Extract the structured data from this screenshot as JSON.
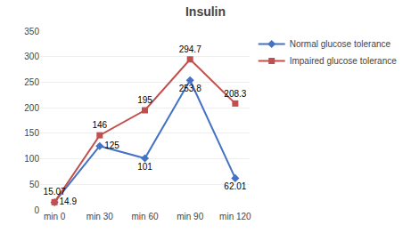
{
  "chart_data": {
    "type": "line",
    "title": "Insulin",
    "categories": [
      "min 0",
      "min 30",
      "min 60",
      "min 90",
      "min 120"
    ],
    "series": [
      {
        "name": "Normal glucose tolerance",
        "color": "#4472C4",
        "marker": "diamond",
        "values": [
          14.9,
          125,
          101,
          253.8,
          62.01
        ]
      },
      {
        "name": "Impaired glucose tolerance",
        "color": "#C0504D",
        "marker": "square",
        "values": [
          15.07,
          146,
          195,
          294.7,
          208.3
        ]
      }
    ],
    "ylim": [
      0,
      350
    ],
    "yticks": [
      0,
      50,
      100,
      150,
      200,
      250,
      300,
      350
    ],
    "grid": true,
    "data_labels": true,
    "legend": "right"
  }
}
